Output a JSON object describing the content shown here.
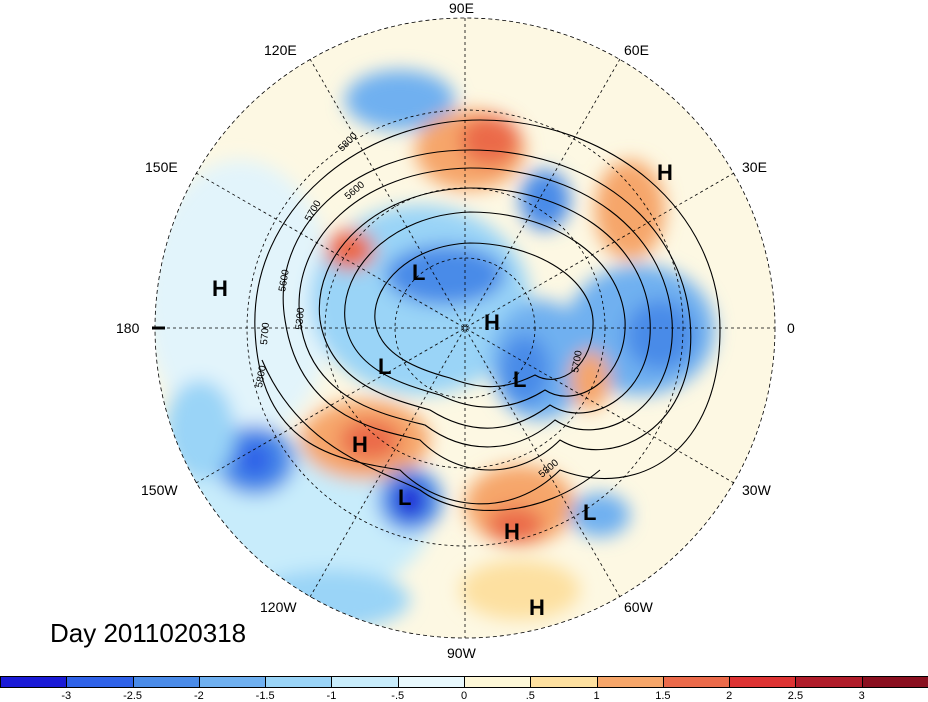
{
  "title": "Day 2011020318",
  "longitude_labels": [
    {
      "text": "90E"
    },
    {
      "text": "60E"
    },
    {
      "text": "30E"
    },
    {
      "text": "0"
    },
    {
      "text": "30W"
    },
    {
      "text": "60W"
    },
    {
      "text": "90W"
    },
    {
      "text": "120W"
    },
    {
      "text": "150W"
    },
    {
      "text": "180"
    },
    {
      "text": "150E"
    },
    {
      "text": "120E"
    }
  ],
  "pressure_centers": [
    "H",
    "H",
    "L",
    "H",
    "L",
    "L",
    "H",
    "L",
    "H",
    "L",
    "H"
  ],
  "contour_labels": [
    "5800",
    "5600",
    "5700",
    "5600",
    "5300",
    "5700",
    "5800",
    "5700",
    "5800"
  ],
  "colorbar": {
    "ticks": [
      "-3",
      "-2.5",
      "-2",
      "-1.5",
      "-1",
      "-.5",
      "0",
      ".5",
      "1",
      "1.5",
      "2",
      "2.5",
      "3"
    ],
    "colors": [
      "#1a1ad6",
      "#2f62e8",
      "#4a8be8",
      "#6fb0f0",
      "#9ad4f7",
      "#c8ecfb",
      "#e8f8fd",
      "#fdf7d7",
      "#fde0a0",
      "#f6a66a",
      "#eb6a4a",
      "#dd3333",
      "#b01c2a",
      "#8a0f1f"
    ]
  },
  "colors": {
    "background": "#ffffff",
    "coast": "#000000",
    "grid": "#000000"
  }
}
